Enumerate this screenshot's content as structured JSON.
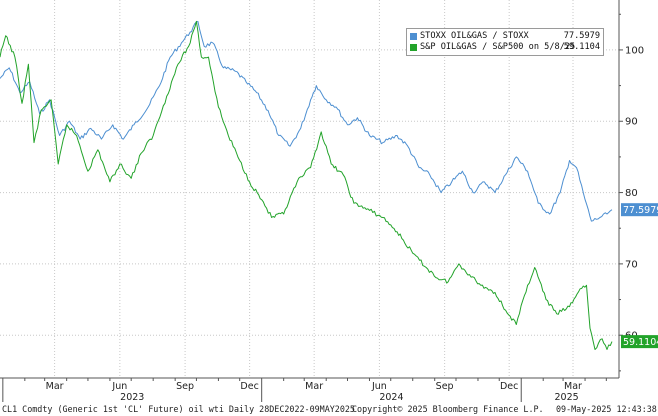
{
  "chart_data": {
    "type": "line",
    "y_axis": {
      "side": "right",
      "ticks": [
        60,
        70,
        80,
        90,
        100
      ],
      "range": [
        54,
        107
      ]
    },
    "x_axis": {
      "month_ticks": [
        "Mar",
        "Jun",
        "Sep",
        "Dec",
        "Mar",
        "Jun",
        "Sep",
        "Dec",
        "Mar"
      ],
      "year_labels": [
        "2023",
        "2024",
        "2025"
      ],
      "range": [
        "2022-12-28",
        "2025-05-09"
      ]
    },
    "grid": "dotted horizontal and vertical",
    "legend_position": "top-right",
    "series": [
      {
        "name": "STOXX OIL&GAS / STOXX",
        "legend_value": "77.5979",
        "last_label": "77.5979",
        "color": "#4d8fd1",
        "points": [
          [
            "2022-12-28",
            96.0
          ],
          [
            "2023-01-10",
            97.5
          ],
          [
            "2023-01-25",
            94.0
          ],
          [
            "2023-02-08",
            95.5
          ],
          [
            "2023-02-22",
            91.0
          ],
          [
            "2023-03-08",
            93.0
          ],
          [
            "2023-03-22",
            88.0
          ],
          [
            "2023-04-05",
            90.0
          ],
          [
            "2023-04-20",
            87.5
          ],
          [
            "2023-05-05",
            89.0
          ],
          [
            "2023-05-20",
            87.5
          ],
          [
            "2023-06-05",
            89.5
          ],
          [
            "2023-06-20",
            87.5
          ],
          [
            "2023-07-05",
            89.5
          ],
          [
            "2023-07-25",
            92.0
          ],
          [
            "2023-08-10",
            95.0
          ],
          [
            "2023-08-25",
            99.0
          ],
          [
            "2023-09-10",
            101.0
          ],
          [
            "2023-09-22",
            102.5
          ],
          [
            "2023-10-03",
            104.0
          ],
          [
            "2023-10-12",
            100.5
          ],
          [
            "2023-10-24",
            101.0
          ],
          [
            "2023-11-08",
            97.5
          ],
          [
            "2023-11-25",
            97.0
          ],
          [
            "2023-12-10",
            95.5
          ],
          [
            "2023-12-25",
            94.0
          ],
          [
            "2024-01-10",
            91.5
          ],
          [
            "2024-01-25",
            88.0
          ],
          [
            "2024-02-10",
            86.5
          ],
          [
            "2024-02-25",
            89.0
          ],
          [
            "2024-03-10",
            93.0
          ],
          [
            "2024-03-18",
            95.0
          ],
          [
            "2024-04-01",
            93.0
          ],
          [
            "2024-04-15",
            92.0
          ],
          [
            "2024-05-01",
            89.5
          ],
          [
            "2024-05-15",
            90.5
          ],
          [
            "2024-06-01",
            88.0
          ],
          [
            "2024-06-20",
            87.0
          ],
          [
            "2024-07-10",
            88.0
          ],
          [
            "2024-07-25",
            86.5
          ],
          [
            "2024-08-10",
            83.5
          ],
          [
            "2024-08-25",
            82.5
          ],
          [
            "2024-09-10",
            80.0
          ],
          [
            "2024-09-25",
            81.5
          ],
          [
            "2024-10-10",
            83.0
          ],
          [
            "2024-10-25",
            80.0
          ],
          [
            "2024-11-10",
            81.5
          ],
          [
            "2024-11-25",
            80.0
          ],
          [
            "2024-12-10",
            82.5
          ],
          [
            "2024-12-25",
            85.0
          ],
          [
            "2025-01-10",
            83.0
          ],
          [
            "2025-01-25",
            78.5
          ],
          [
            "2025-02-10",
            77.0
          ],
          [
            "2025-02-25",
            80.0
          ],
          [
            "2025-03-10",
            84.5
          ],
          [
            "2025-03-20",
            83.5
          ],
          [
            "2025-04-01",
            79.0
          ],
          [
            "2025-04-10",
            76.0
          ],
          [
            "2025-04-22",
            76.5
          ],
          [
            "2025-05-02",
            77.0
          ],
          [
            "2025-05-09",
            77.6
          ]
        ]
      },
      {
        "name": "S&P OIL&GAS / S&P500 on 5/8/25",
        "legend_value": "59.1104",
        "last_label": "59.1104",
        "color": "#22a32a",
        "points": [
          [
            "2022-12-28",
            99.0
          ],
          [
            "2023-01-05",
            102.0
          ],
          [
            "2023-01-18",
            99.0
          ],
          [
            "2023-01-28",
            92.5
          ],
          [
            "2023-02-06",
            98.0
          ],
          [
            "2023-02-14",
            87.0
          ],
          [
            "2023-02-24",
            91.5
          ],
          [
            "2023-03-10",
            93.0
          ],
          [
            "2023-03-20",
            84.0
          ],
          [
            "2023-04-01",
            89.5
          ],
          [
            "2023-04-15",
            88.0
          ],
          [
            "2023-05-01",
            83.0
          ],
          [
            "2023-05-15",
            86.0
          ],
          [
            "2023-06-01",
            81.5
          ],
          [
            "2023-06-15",
            84.0
          ],
          [
            "2023-07-01",
            82.0
          ],
          [
            "2023-07-15",
            85.5
          ],
          [
            "2023-08-01",
            88.0
          ],
          [
            "2023-08-20",
            93.5
          ],
          [
            "2023-09-05",
            98.0
          ],
          [
            "2023-09-20",
            100.5
          ],
          [
            "2023-10-01",
            104.0
          ],
          [
            "2023-10-08",
            99.0
          ],
          [
            "2023-10-18",
            99.0
          ],
          [
            "2023-11-01",
            92.0
          ],
          [
            "2023-11-15",
            88.0
          ],
          [
            "2023-12-01",
            84.5
          ],
          [
            "2023-12-15",
            81.5
          ],
          [
            "2024-01-01",
            79.0
          ],
          [
            "2024-01-15",
            76.5
          ],
          [
            "2024-02-01",
            77.0
          ],
          [
            "2024-02-20",
            81.5
          ],
          [
            "2024-03-10",
            83.5
          ],
          [
            "2024-03-25",
            88.5
          ],
          [
            "2024-04-08",
            84.0
          ],
          [
            "2024-04-25",
            82.5
          ],
          [
            "2024-05-10",
            78.5
          ],
          [
            "2024-06-01",
            77.5
          ],
          [
            "2024-06-20",
            76.5
          ],
          [
            "2024-07-10",
            74.5
          ],
          [
            "2024-08-01",
            71.5
          ],
          [
            "2024-08-20",
            69.5
          ],
          [
            "2024-09-05",
            68.0
          ],
          [
            "2024-09-20",
            67.5
          ],
          [
            "2024-10-05",
            70.0
          ],
          [
            "2024-10-20",
            68.5
          ],
          [
            "2024-11-05",
            67.0
          ],
          [
            "2024-11-25",
            66.0
          ],
          [
            "2024-12-10",
            63.5
          ],
          [
            "2024-12-25",
            61.5
          ],
          [
            "2025-01-10",
            67.0
          ],
          [
            "2025-01-20",
            69.5
          ],
          [
            "2025-02-05",
            65.0
          ],
          [
            "2025-02-20",
            63.0
          ],
          [
            "2025-03-10",
            64.0
          ],
          [
            "2025-03-25",
            66.5
          ],
          [
            "2025-04-03",
            67.0
          ],
          [
            "2025-04-08",
            61.0
          ],
          [
            "2025-04-15",
            58.0
          ],
          [
            "2025-04-25",
            59.5
          ],
          [
            "2025-05-02",
            58.0
          ],
          [
            "2025-05-09",
            59.1
          ]
        ]
      }
    ]
  },
  "footer": {
    "left": "CL1 Comdty (Generic 1st 'CL' Future) oil wti  Daily 28DEC2022-09MAY2025",
    "center": "Copyright© 2025 Bloomberg Finance L.P.",
    "right": "09-May-2025 12:43:38"
  }
}
